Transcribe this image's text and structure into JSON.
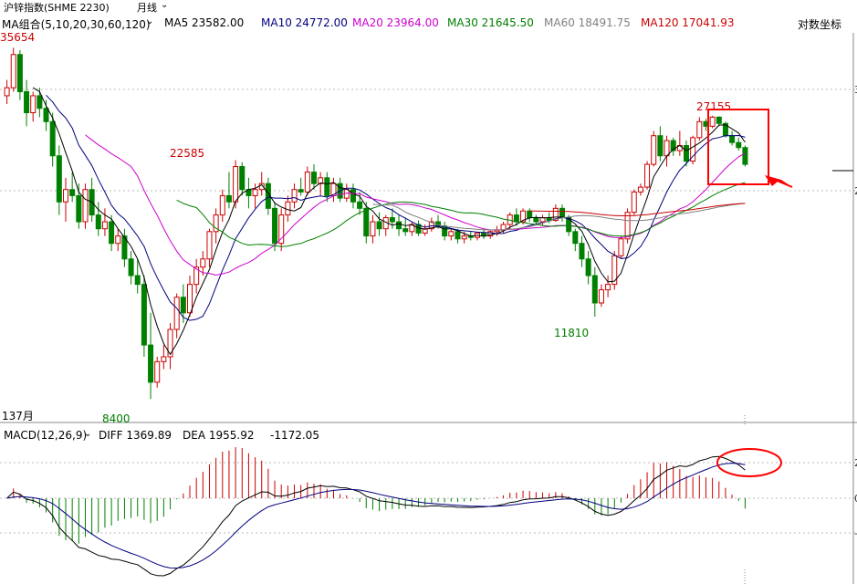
{
  "header": {
    "instrument": "沪锌指数(SHME 2230)",
    "period": "月线",
    "log_coord": "对数坐标"
  },
  "ma_bar": {
    "label": "MA组合(5,10,20,30,60,120)",
    "items": [
      {
        "text": "MA5 23582.00",
        "color": "#000000"
      },
      {
        "text": "MA10 24772.00",
        "color": "#000080"
      },
      {
        "text": "MA20 23964.00",
        "color": "#cc00cc"
      },
      {
        "text": "MA30 21645.50",
        "color": "#008000"
      },
      {
        "text": "MA60 18491.75",
        "color": "#808080"
      },
      {
        "text": "MA120 17041.93",
        "color": "#cc0000"
      }
    ]
  },
  "macd_bar": {
    "label": "MACD(12,26,9)",
    "diff": "DIFF 1369.89",
    "dea": "DEA 1955.92",
    "macd": "-1172.05"
  },
  "annotations": {
    "high_left": "35654",
    "peak_mid": "22585",
    "low_left": "8400",
    "low_mid": "11810",
    "peak_right": "27155",
    "date_left": "137月"
  },
  "axis_ticks": {
    "price_top": "3",
    "price_mid": "2",
    "macd_top": "2",
    "macd_mid": "0",
    "macd_bottom": "-"
  },
  "colors": {
    "up": "#cc0000",
    "down": "#008000",
    "ma5": "#000000",
    "ma10": "#000080",
    "ma20": "#cc00cc",
    "ma30": "#008000",
    "ma60": "#808080",
    "ma120": "#cc0000",
    "highlight": "#ff0000"
  },
  "chart_data": {
    "type": "candlestick",
    "ylog": true,
    "ylim": [
      8000,
      38000
    ],
    "candles": [
      [
        29500,
        31500,
        28500,
        30500
      ],
      [
        30500,
        36000,
        30000,
        35000
      ],
      [
        35000,
        35654,
        29000,
        30000
      ],
      [
        30000,
        31500,
        26000,
        27500
      ],
      [
        27500,
        30000,
        26500,
        29500
      ],
      [
        29500,
        30500,
        27000,
        28000
      ],
      [
        28000,
        29000,
        25500,
        26500
      ],
      [
        26500,
        27500,
        22000,
        23000
      ],
      [
        23000,
        24000,
        18000,
        19000
      ],
      [
        19000,
        21000,
        17500,
        20000
      ],
      [
        20000,
        21500,
        19000,
        19500
      ],
      [
        19500,
        20500,
        17000,
        17500
      ],
      [
        17500,
        20500,
        17000,
        20000
      ],
      [
        20000,
        21000,
        17500,
        18000
      ],
      [
        18000,
        19000,
        16500,
        17000
      ],
      [
        17000,
        18500,
        16500,
        17500
      ],
      [
        17500,
        18000,
        15500,
        16000
      ],
      [
        16000,
        17000,
        15500,
        16500
      ],
      [
        16500,
        17000,
        14500,
        15000
      ],
      [
        15000,
        15500,
        13500,
        14000
      ],
      [
        14000,
        15000,
        13000,
        13500
      ],
      [
        13500,
        14000,
        10000,
        10500
      ],
      [
        10500,
        12000,
        8400,
        9000
      ],
      [
        9000,
        10000,
        8800,
        9800
      ],
      [
        9800,
        10500,
        9500,
        10000
      ],
      [
        10000,
        11500,
        9500,
        11200
      ],
      [
        11200,
        13000,
        10800,
        12800
      ],
      [
        12800,
        13500,
        11500,
        12000
      ],
      [
        12000,
        14000,
        11800,
        13500
      ],
      [
        13500,
        15000,
        13000,
        14500
      ],
      [
        14500,
        15500,
        14000,
        15000
      ],
      [
        15000,
        17000,
        14500,
        16800
      ],
      [
        16800,
        18500,
        16000,
        18000
      ],
      [
        18000,
        20000,
        17500,
        19500
      ],
      [
        19500,
        21500,
        18500,
        19000
      ],
      [
        19000,
        22585,
        18500,
        22000
      ],
      [
        22000,
        22400,
        19500,
        20000
      ],
      [
        20000,
        21000,
        18500,
        19500
      ],
      [
        19500,
        20500,
        18500,
        20000
      ],
      [
        20000,
        21500,
        19500,
        20500
      ],
      [
        20500,
        21000,
        18000,
        18500
      ],
      [
        18500,
        19000,
        15500,
        16000
      ],
      [
        16000,
        18500,
        15500,
        18000
      ],
      [
        18000,
        19500,
        17500,
        19000
      ],
      [
        19000,
        20500,
        18500,
        20000
      ],
      [
        20000,
        21000,
        19500,
        19800
      ],
      [
        19800,
        22000,
        19500,
        21500
      ],
      [
        21500,
        22200,
        20000,
        20500
      ],
      [
        20500,
        21500,
        19500,
        21000
      ],
      [
        21000,
        21500,
        19000,
        19500
      ],
      [
        19500,
        21000,
        19000,
        20500
      ],
      [
        20500,
        21000,
        19000,
        19300
      ],
      [
        19300,
        20500,
        19000,
        20000
      ],
      [
        20000,
        20500,
        18500,
        19000
      ],
      [
        19000,
        19800,
        18000,
        18500
      ],
      [
        18500,
        19000,
        16000,
        16500
      ],
      [
        16500,
        18000,
        16000,
        17500
      ],
      [
        17500,
        18200,
        16500,
        17000
      ],
      [
        17000,
        18000,
        16500,
        17800
      ],
      [
        17800,
        18500,
        17000,
        17500
      ],
      [
        17500,
        18000,
        16500,
        17000
      ],
      [
        17000,
        17800,
        16500,
        16800
      ],
      [
        16800,
        17500,
        16500,
        17300
      ],
      [
        17300,
        17600,
        16500,
        16700
      ],
      [
        16700,
        17300,
        16500,
        17000
      ],
      [
        17000,
        17800,
        16800,
        17500
      ],
      [
        17500,
        18000,
        17000,
        17200
      ],
      [
        17200,
        17500,
        16200,
        16500
      ],
      [
        16500,
        17000,
        16200,
        16800
      ],
      [
        16800,
        17000,
        16000,
        16300
      ],
      [
        16300,
        16800,
        16000,
        16500
      ],
      [
        16500,
        16800,
        16200,
        16400
      ],
      [
        16400,
        16800,
        16200,
        16700
      ],
      [
        16700,
        17000,
        16300,
        16500
      ],
      [
        16500,
        16900,
        16300,
        16800
      ],
      [
        16800,
        17200,
        16500,
        16900
      ],
      [
        16900,
        17500,
        16700,
        17300
      ],
      [
        17300,
        18200,
        17000,
        18000
      ],
      [
        18000,
        18500,
        17200,
        17500
      ],
      [
        17500,
        18500,
        17300,
        18300
      ],
      [
        18300,
        18500,
        17500,
        17800
      ],
      [
        17800,
        18000,
        17300,
        17500
      ],
      [
        17500,
        18000,
        17200,
        17800
      ],
      [
        17800,
        18200,
        17400,
        17600
      ],
      [
        17600,
        18800,
        17500,
        18500
      ],
      [
        18500,
        18800,
        17500,
        17800
      ],
      [
        17800,
        18000,
        16500,
        16800
      ],
      [
        16800,
        17000,
        15500,
        16000
      ],
      [
        16000,
        16500,
        14500,
        15000
      ],
      [
        15000,
        15500,
        13500,
        14000
      ],
      [
        14000,
        14500,
        11810,
        12500
      ],
      [
        12500,
        13500,
        12300,
        13200
      ],
      [
        13200,
        14000,
        12800,
        13500
      ],
      [
        13500,
        15500,
        13200,
        15200
      ],
      [
        15200,
        16500,
        15000,
        16300
      ],
      [
        16300,
        18500,
        16000,
        18200
      ],
      [
        18200,
        20000,
        18000,
        19800
      ],
      [
        19800,
        20500,
        19500,
        20200
      ],
      [
        20200,
        22500,
        20000,
        22200
      ],
      [
        22200,
        25500,
        22000,
        25000
      ],
      [
        25000,
        26000,
        22500,
        23000
      ],
      [
        23000,
        25000,
        22000,
        24500
      ],
      [
        24500,
        24800,
        23000,
        23500
      ],
      [
        23500,
        25500,
        23000,
        24000
      ],
      [
        24000,
        24500,
        22000,
        22500
      ],
      [
        22500,
        25000,
        22200,
        24800
      ],
      [
        24800,
        27000,
        24500,
        26500
      ],
      [
        26500,
        26800,
        25500,
        26000
      ],
      [
        26000,
        27155,
        25800,
        27000
      ],
      [
        27000,
        27100,
        26000,
        26300
      ],
      [
        26300,
        26500,
        24800,
        25000
      ],
      [
        25000,
        25500,
        24000,
        24300
      ],
      [
        24300,
        24800,
        23500,
        23800
      ],
      [
        23800,
        24000,
        22000,
        22200
      ]
    ],
    "ma5_tail": [
      23582.0
    ],
    "macd": {
      "diff": 1369.89,
      "dea": 1955.92,
      "macd": -1172.05
    }
  }
}
